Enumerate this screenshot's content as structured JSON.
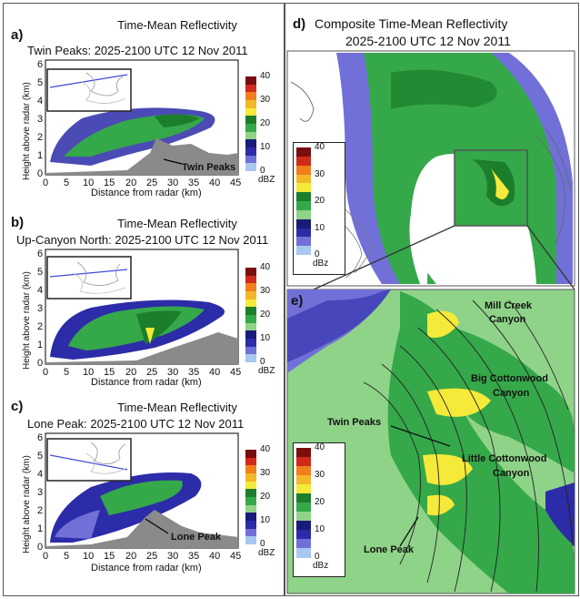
{
  "panel_a": {
    "label": "a)",
    "title": "Time-Mean Reflectivity",
    "subtitle": "Twin Peaks: 2025-2100 UTC 12 Nov 2011",
    "peak_label": "Twin Peaks"
  },
  "panel_b": {
    "label": "b)",
    "title": "Time-Mean Reflectivity",
    "subtitle": "Up-Canyon North: 2025-2100 UTC 12 Nov 2011"
  },
  "panel_c": {
    "label": "c)",
    "title": "Time-Mean Reflectivity",
    "subtitle": "Lone Peak: 2025-2100 UTC 12 Nov 2011",
    "peak_label": "Lone Peak"
  },
  "panel_d": {
    "label": "d)",
    "title": "Composite Time-Mean Reflectivity",
    "subtitle": "2025-2100 UTC 12 Nov 2011"
  },
  "panel_e": {
    "label": "e)",
    "annotations": [
      "Mill Creek",
      "Canyon",
      "Big Cottonwood",
      "Canyon",
      "Twin Peaks",
      "Little Cottonwood",
      "Canyon",
      "Lone Peak"
    ]
  },
  "axes": {
    "ylabel": "Height above radar (km)",
    "xlabel": "Distance from radar (km)",
    "x_ticks": [
      "0",
      "5",
      "10",
      "15",
      "20",
      "25",
      "30",
      "35",
      "40",
      "45"
    ],
    "y_ticks": [
      "0",
      "1",
      "2",
      "3",
      "4",
      "5",
      "6"
    ]
  },
  "colorbar": {
    "unit_lower": "dBz",
    "unit_upper": "dBZ",
    "ticks": [
      "40",
      "30",
      "20",
      "10",
      "0"
    ],
    "colors": [
      "#7a0d0d",
      "#d02a1a",
      "#f07f1d",
      "#f2b82a",
      "#f5ea3a",
      "#1c7e2b",
      "#35a84a",
      "#8fd389",
      "#1a1a7a",
      "#2c2ca8",
      "#7070d8",
      "#a8c8f0"
    ]
  }
}
